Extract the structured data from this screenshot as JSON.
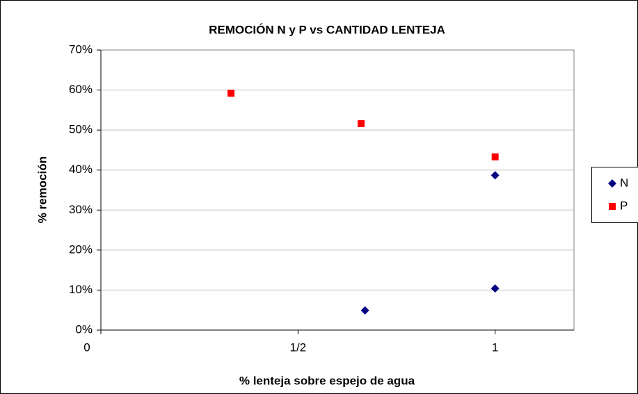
{
  "chart_data": {
    "type": "scatter",
    "title": "REMOCIÓN N y P vs CANTIDAD LENTEJA",
    "x_label": "% lenteja sobre espejo de agua",
    "y_label": "% remoción",
    "xlim": [
      0,
      1.2
    ],
    "xticks": [
      0,
      {
        "value": 0.5,
        "label": "1/2"
      },
      1
    ],
    "ylim": [
      0,
      70
    ],
    "yticks": [
      {
        "value": 0,
        "label": "0%"
      },
      {
        "value": 10,
        "label": "10%"
      },
      {
        "value": 20,
        "label": "20%"
      },
      {
        "value": 30,
        "label": "30%"
      },
      {
        "value": 40,
        "label": "40%"
      },
      {
        "value": 50,
        "label": "50%"
      },
      {
        "value": 60,
        "label": "60%"
      },
      {
        "value": 70,
        "label": "70%"
      }
    ],
    "grid": true,
    "legend": "right",
    "series": [
      {
        "name": "N",
        "color": "#000080",
        "marker": "diamond",
        "x": [
          0.67,
          1,
          1
        ],
        "values": [
          4.9,
          10.4,
          38.7
        ]
      },
      {
        "name": "P",
        "color": "#ff0000",
        "marker": "square",
        "x": [
          0.33,
          0.66,
          1
        ],
        "values": [
          59.2,
          51.6,
          43.3
        ]
      }
    ]
  }
}
